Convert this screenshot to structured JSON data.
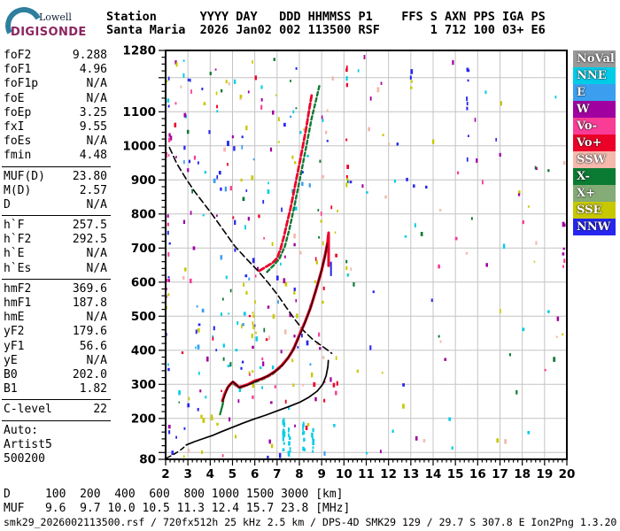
{
  "logo": {
    "line1": "Lowell",
    "line2": "DIGISONDE"
  },
  "header": {
    "columns": [
      "Station",
      "YYYY",
      "DAY",
      "DDD",
      "HHMMSS",
      "P1",
      "FFS",
      "S",
      "AXN",
      "PPS",
      "IGA",
      "PS"
    ],
    "values": [
      "Santa Maria",
      "2026",
      "Jan02",
      "002",
      "113500",
      "RSF",
      "",
      "1",
      "712",
      "100",
      "03+",
      "E6"
    ]
  },
  "left_panel": {
    "groups": [
      {
        "rows": [
          [
            "foF2",
            "9.288"
          ],
          [
            "foF1",
            "4.96"
          ],
          [
            "foF1p",
            "N/A"
          ],
          [
            "foE",
            "N/A"
          ],
          [
            "foEp",
            "3.25"
          ],
          [
            "fxI",
            "9.55"
          ],
          [
            "foEs",
            "N/A"
          ],
          [
            "fmin",
            "4.48"
          ]
        ]
      },
      {
        "rows": [
          [
            "MUF(D)",
            "23.80"
          ],
          [
            "M(D)",
            "2.57"
          ],
          [
            "D",
            "N/A"
          ]
        ]
      },
      {
        "rows": [
          [
            "h`F",
            "257.5"
          ],
          [
            "h`F2",
            "292.5"
          ],
          [
            "h`E",
            "N/A"
          ],
          [
            "h`Es",
            "N/A"
          ]
        ]
      },
      {
        "rows": [
          [
            "hmF2",
            "369.6"
          ],
          [
            "hmF1",
            "187.8"
          ],
          [
            "hmE",
            "N/A"
          ],
          [
            "yF2",
            "179.6"
          ],
          [
            "yF1",
            "56.6"
          ],
          [
            "yE",
            "N/A"
          ],
          [
            "B0",
            "202.0"
          ],
          [
            "B1",
            "1.82"
          ]
        ]
      },
      {
        "rows": [
          [
            "C-level",
            "22"
          ]
        ]
      },
      {
        "rows": [
          [
            "Auto:",
            ""
          ],
          [
            "Artist5",
            ""
          ],
          [
            "500200",
            ""
          ]
        ]
      }
    ]
  },
  "legend": {
    "items": [
      {
        "label": "NoVal",
        "color": "#999999"
      },
      {
        "label": "NNE",
        "color": "#00cce8"
      },
      {
        "label": "E",
        "color": "#3c9eee"
      },
      {
        "label": "W",
        "color": "#a000a0"
      },
      {
        "label": "Vo-",
        "color": "#f93c96"
      },
      {
        "label": "Vo+",
        "color": "#eb0028"
      },
      {
        "label": "SSW",
        "color": "#f4b8ac"
      },
      {
        "label": "X-",
        "color": "#0b7a33"
      },
      {
        "label": "X+",
        "color": "#85ab76"
      },
      {
        "label": "SSE",
        "color": "#c8c800"
      },
      {
        "label": "NNW",
        "color": "#2626f0"
      }
    ]
  },
  "bottom": {
    "d_label": "D",
    "d_values": [
      "100",
      "200",
      "400",
      "600",
      "800",
      "1000",
      "1500",
      "3000"
    ],
    "d_unit": "[km]",
    "muf_label": "MUF",
    "muf_values": [
      "9.6",
      "9.7",
      "10.0",
      "10.5",
      "11.3",
      "12.4",
      "15.7",
      "23.8"
    ],
    "muf_unit": "[MHz]"
  },
  "footer": {
    "text": "smk29_2026002113500.rsf / 720fx512h 25 kHz 2.5 km / DPS-4D SMK29 129 / 29.7 S 307.8 E Ion2Png 1.3.20"
  },
  "chart_data": {
    "type": "scatter",
    "title": "Digisonde ionogram",
    "xlim": [
      2,
      20
    ],
    "ylim": [
      80,
      1280
    ],
    "x_ticks": [
      2,
      3,
      4,
      5,
      6,
      7,
      8,
      9,
      10,
      11,
      12,
      13,
      14,
      15,
      16,
      17,
      18,
      19,
      20
    ],
    "y_tick_labels": [
      1280,
      1100,
      1000,
      900,
      800,
      700,
      600,
      500,
      400,
      300,
      200,
      80
    ],
    "grid": true,
    "traces": [
      {
        "name": "muf-transmission-curve",
        "color": "#000000",
        "width": 1.6,
        "dash": "7 4",
        "points": [
          [
            2.17,
            995
          ],
          [
            2.5,
            948
          ],
          [
            2.9,
            905
          ],
          [
            3.3,
            866
          ],
          [
            3.7,
            832
          ],
          [
            4.1,
            798
          ],
          [
            4.6,
            752
          ],
          [
            5.1,
            706
          ],
          [
            5.6,
            670
          ],
          [
            6.1,
            636
          ],
          [
            6.6,
            598
          ],
          [
            7.0,
            565
          ],
          [
            7.4,
            527
          ],
          [
            7.8,
            490
          ],
          [
            8.2,
            457
          ],
          [
            8.6,
            432
          ],
          [
            9.0,
            413
          ],
          [
            9.3,
            399
          ],
          [
            9.45,
            391
          ]
        ]
      },
      {
        "name": "profile-start-dashed",
        "color": "#000000",
        "width": 1.5,
        "dash": "5 4",
        "points": [
          [
            2.05,
            84
          ],
          [
            2.35,
            94
          ],
          [
            2.6,
            104
          ],
          [
            2.8,
            114
          ],
          [
            2.92,
            122
          ]
        ]
      },
      {
        "name": "true-height-profile",
        "color": "#000000",
        "width": 1.7,
        "points": [
          [
            2.92,
            122
          ],
          [
            3.3,
            132
          ],
          [
            3.7,
            141
          ],
          [
            4.1,
            150
          ],
          [
            4.5,
            161
          ],
          [
            5.0,
            174
          ],
          [
            5.5,
            187
          ],
          [
            6.0,
            199
          ],
          [
            6.5,
            210
          ],
          [
            7.0,
            222
          ],
          [
            7.5,
            234
          ],
          [
            8.0,
            247
          ],
          [
            8.4,
            261
          ],
          [
            8.8,
            280
          ],
          [
            9.05,
            300
          ],
          [
            9.2,
            325
          ],
          [
            9.28,
            352
          ],
          [
            9.3,
            370
          ]
        ]
      },
      {
        "name": "x-trace-hop1",
        "color": "X-",
        "width": 2.2,
        "dash": "4 3",
        "points": [
          [
            4.56,
            242
          ],
          [
            4.62,
            262
          ],
          [
            4.72,
            283
          ],
          [
            4.85,
            297
          ],
          [
            5.0,
            303
          ],
          [
            5.18,
            295
          ],
          [
            5.35,
            289
          ],
          [
            5.6,
            296
          ],
          [
            6.0,
            306
          ],
          [
            6.4,
            316
          ],
          [
            6.8,
            330
          ],
          [
            7.2,
            352
          ],
          [
            7.6,
            390
          ],
          [
            8.0,
            442
          ],
          [
            8.35,
            500
          ],
          [
            8.7,
            566
          ],
          [
            9.0,
            632
          ],
          [
            9.12,
            668
          ]
        ]
      },
      {
        "name": "o-trace-hop1",
        "color": "Vo+",
        "width": 3.2,
        "points": [
          [
            4.55,
            252
          ],
          [
            4.65,
            272
          ],
          [
            4.78,
            290
          ],
          [
            4.9,
            300
          ],
          [
            5.02,
            307
          ],
          [
            5.12,
            302
          ],
          [
            5.28,
            292
          ],
          [
            5.45,
            294
          ],
          [
            5.7,
            300
          ],
          [
            6.0,
            310
          ],
          [
            6.3,
            316
          ],
          [
            6.6,
            325
          ],
          [
            6.9,
            338
          ],
          [
            7.2,
            355
          ],
          [
            7.5,
            378
          ],
          [
            7.75,
            405
          ],
          [
            8.0,
            445
          ],
          [
            8.25,
            482
          ],
          [
            8.5,
            525
          ],
          [
            8.75,
            578
          ],
          [
            9.0,
            635
          ],
          [
            9.15,
            678
          ],
          [
            9.27,
            718
          ],
          [
            9.3,
            738
          ]
        ]
      },
      {
        "name": "o-trace-fit-line",
        "color": "#000000",
        "width": 1.2,
        "points": [
          [
            4.55,
            250
          ],
          [
            4.8,
            293
          ],
          [
            5.02,
            308
          ],
          [
            5.3,
            291
          ],
          [
            5.7,
            299
          ],
          [
            6.1,
            311
          ],
          [
            6.5,
            322
          ],
          [
            6.9,
            337
          ],
          [
            7.3,
            360
          ],
          [
            7.7,
            398
          ],
          [
            8.1,
            456
          ],
          [
            8.5,
            524
          ],
          [
            8.9,
            612
          ],
          [
            9.15,
            675
          ],
          [
            9.3,
            728
          ],
          [
            9.33,
            745
          ]
        ]
      },
      {
        "name": "o-trace-asymptote-tail",
        "color": "Vo+",
        "width": 3,
        "points": [
          [
            9.31,
            648
          ],
          [
            9.31,
            745
          ]
        ]
      },
      {
        "name": "x-trace-asymptote-tail",
        "color": "NNW",
        "width": 2,
        "points": [
          [
            9.42,
            620
          ],
          [
            9.42,
            658
          ]
        ]
      },
      {
        "name": "hop2-o-trace",
        "color": "Vo+",
        "width": 2.8,
        "dash": "6 3",
        "points": [
          [
            6.2,
            633
          ],
          [
            6.5,
            645
          ],
          [
            6.8,
            657
          ],
          [
            7.0,
            670
          ],
          [
            7.15,
            696
          ],
          [
            7.3,
            732
          ],
          [
            7.45,
            775
          ],
          [
            7.6,
            815
          ],
          [
            7.75,
            864
          ],
          [
            7.9,
            914
          ],
          [
            8.05,
            964
          ],
          [
            8.2,
            1014
          ],
          [
            8.32,
            1058
          ],
          [
            8.45,
            1110
          ],
          [
            8.57,
            1155
          ]
        ]
      },
      {
        "name": "hop2-x-trace",
        "color": "X-",
        "width": 2.4,
        "dash": "4 3",
        "points": [
          [
            6.55,
            630
          ],
          [
            6.85,
            650
          ],
          [
            7.1,
            668
          ],
          [
            7.35,
            705
          ],
          [
            7.55,
            755
          ],
          [
            7.75,
            815
          ],
          [
            7.95,
            878
          ],
          [
            8.15,
            945
          ],
          [
            8.35,
            1012
          ],
          [
            8.55,
            1080
          ],
          [
            8.75,
            1135
          ],
          [
            8.9,
            1178
          ]
        ]
      },
      {
        "name": "x-mode-arrow",
        "color": "X-",
        "width": 2.2,
        "points": [
          [
            4.57,
            243
          ],
          [
            4.44,
            212
          ]
        ]
      }
    ],
    "noise": {
      "seed": 29,
      "regions": [
        {
          "x1": 2.2,
          "x2": 9.8,
          "h1": 85,
          "h2": 1265,
          "n": 260,
          "colors": [
            "SSE",
            "SSE",
            "SSE",
            "NNE",
            "NNE",
            "W",
            "W",
            "NNW",
            "NNW",
            "Vo-",
            "X-",
            "SSW",
            "E",
            "Vo+"
          ]
        },
        {
          "x1": 9.8,
          "x2": 19.9,
          "h1": 85,
          "h2": 1265,
          "n": 80,
          "colors": [
            "SSE",
            "NNE",
            "W",
            "NNW",
            "Vo-",
            "X-",
            "SSW"
          ]
        },
        {
          "x1": 2.02,
          "x2": 2.2,
          "h1": 85,
          "h2": 1265,
          "n": 28,
          "colors": [
            "W",
            "Vo-",
            "SSE",
            "NNE",
            "NNW"
          ]
        }
      ],
      "streaks": [
        {
          "x": 7.3,
          "h1": 100,
          "h2": 195,
          "n": 12,
          "colors": [
            "NNE"
          ]
        },
        {
          "x": 7.55,
          "h1": 92,
          "h2": 170,
          "n": 10,
          "colors": [
            "NNE"
          ]
        },
        {
          "x": 8.2,
          "h1": 105,
          "h2": 185,
          "n": 9,
          "colors": [
            "NNE"
          ]
        },
        {
          "x": 8.6,
          "h1": 95,
          "h2": 180,
          "n": 8,
          "colors": [
            "NNE"
          ]
        },
        {
          "x": 10.15,
          "h1": 600,
          "h2": 1250,
          "n": 14,
          "colors": [
            "SSE",
            "X-",
            "Vo+",
            "NNE"
          ]
        },
        {
          "x": 15.55,
          "h1": 950,
          "h2": 1250,
          "n": 8,
          "colors": [
            "NNW"
          ]
        },
        {
          "x": 19.85,
          "h1": 600,
          "h2": 770,
          "n": 6,
          "colors": [
            "Vo-",
            "W"
          ]
        },
        {
          "x": 5.92,
          "h1": 290,
          "h2": 530,
          "n": 9,
          "colors": [
            "SSE"
          ]
        },
        {
          "x": 13.0,
          "h1": 1150,
          "h2": 1260,
          "n": 4,
          "colors": [
            "NNW",
            "SSE"
          ]
        }
      ]
    }
  }
}
